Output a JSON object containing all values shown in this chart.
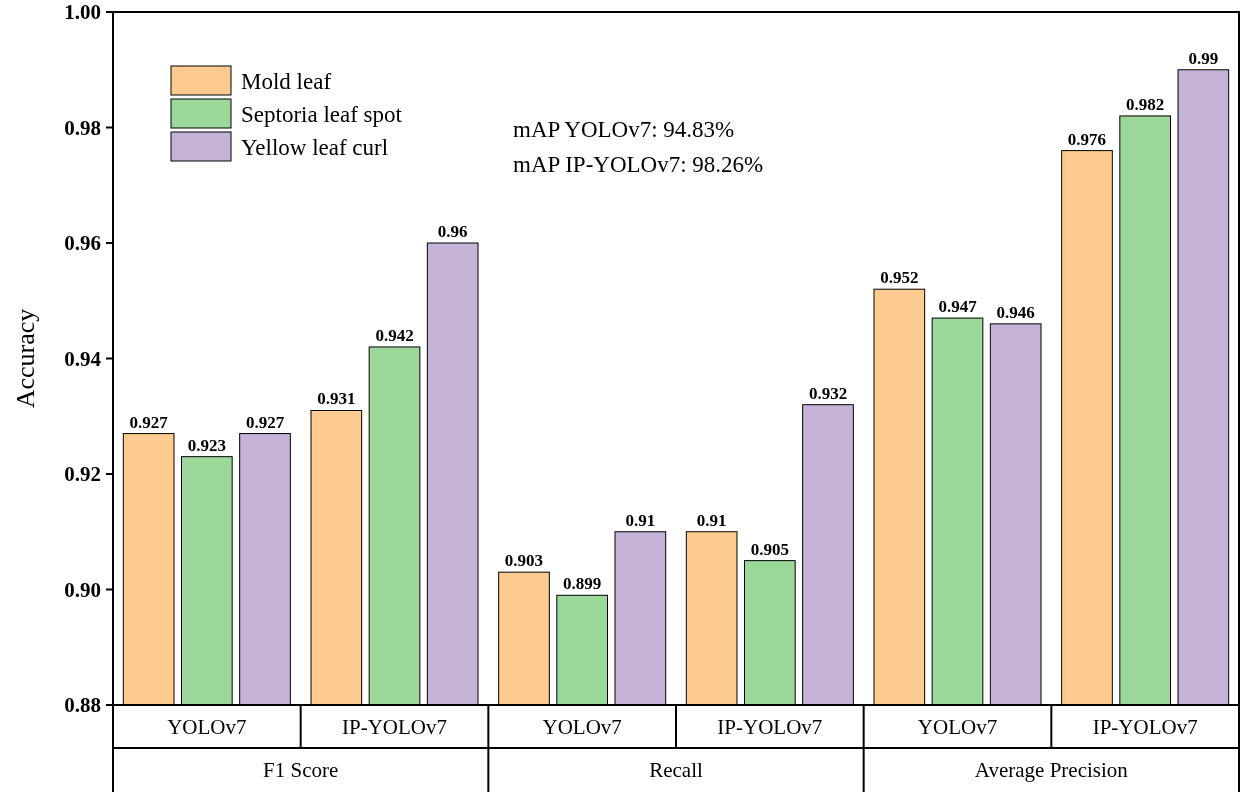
{
  "chart_data": {
    "type": "bar",
    "ylabel": "Accuracy",
    "categories": [
      "YOLOv7",
      "IP-YOLOv7",
      "YOLOv7",
      "IP-YOLOv7",
      "YOLOv7",
      "IP-YOLOv7"
    ],
    "series": [
      {
        "name": "Mold leaf",
        "color": "#fdcb8f",
        "values": [
          0.927,
          0.931,
          0.903,
          0.91,
          0.952,
          0.976
        ]
      },
      {
        "name": "Septoria leaf spot",
        "color": "#9dd89b",
        "values": [
          0.923,
          0.942,
          0.899,
          0.905,
          0.947,
          0.982
        ]
      },
      {
        "name": "Yellow leaf curl",
        "color": "#c5b3d8",
        "values": [
          0.927,
          0.96,
          0.91,
          0.932,
          0.946,
          0.99
        ]
      }
    ],
    "ylim": [
      0.88,
      1.0
    ],
    "yticks": [
      {
        "value": 0.88,
        "label": "0.88"
      },
      {
        "value": 0.9,
        "label": "0.90"
      },
      {
        "value": 0.92,
        "label": "0.92"
      },
      {
        "value": 0.94,
        "label": "0.94"
      },
      {
        "value": 0.96,
        "label": "0.96"
      },
      {
        "value": 0.98,
        "label": "0.98"
      },
      {
        "value": 1.0,
        "label": "1.00"
      }
    ],
    "annotations": [
      "F1 Score",
      "Recall",
      "Average Precision",
      "mAP YOLOv7: 94.83%",
      "mAP IP-YOLOv7: 98.26%"
    ],
    "data_labels": true,
    "legend": "top left",
    "grid": false
  }
}
